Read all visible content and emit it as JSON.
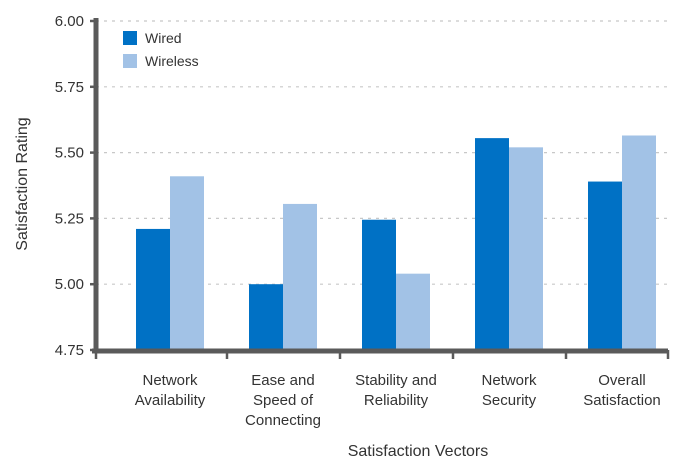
{
  "chart_data": {
    "type": "bar",
    "title": "",
    "xlabel": "Satisfaction Vectors",
    "ylabel": "Satisfaction Rating",
    "ylim": [
      4.75,
      6.0
    ],
    "yticks": [
      "4.75",
      "5.00",
      "5.25",
      "5.50",
      "5.75",
      "6.00"
    ],
    "grid": true,
    "legend_position": "top-left",
    "categories": [
      [
        "Network",
        "Availability"
      ],
      [
        "Ease and",
        "Speed of",
        "Connecting"
      ],
      [
        "Stability and",
        "Reliability"
      ],
      [
        "Network",
        "Security"
      ],
      [
        "Overall",
        "Satisfaction"
      ]
    ],
    "series": [
      {
        "name": "Wired",
        "color": "#0071c5",
        "values": [
          5.21,
          5.0,
          5.245,
          5.555,
          5.39
        ]
      },
      {
        "name": "Wireless",
        "color": "#a2c2e6",
        "values": [
          5.41,
          5.305,
          5.04,
          5.52,
          5.565
        ]
      }
    ],
    "axis_color": "#5a5a5a",
    "grid_color": "#c8c8c8"
  }
}
